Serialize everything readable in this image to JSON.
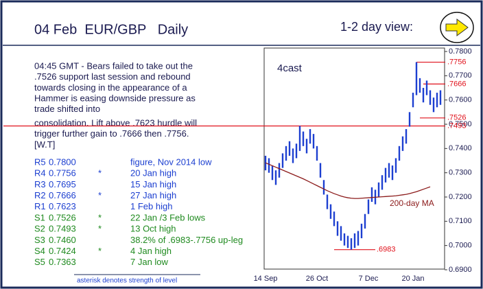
{
  "header": {
    "title": "04 Feb  EUR/GBP   Daily",
    "view_label": "1-2 day view:"
  },
  "commentary": [
    [
      "04:45 GMT - Bears failed to take out the",
      ".7526 support last session and rebound",
      "towards closing in the appearance of a",
      "Hammer is easing downside pressure as",
      "trade shifted into"
    ],
    [
      "consolidation. Lift above .7623 hurdle will",
      "trigger further gain to .7666 then .7756.",
      "[W.T]"
    ]
  ],
  "levels": [
    {
      "name": "R5",
      "price": "0.7800",
      "note": "figure, Nov 2014 low"
    },
    {
      "name": "R4",
      "price": "0.7756",
      "star": "*",
      "note": "20 Jan high"
    },
    {
      "name": "R3",
      "price": "0.7695",
      "note": "15 Jan high"
    },
    {
      "name": "R2",
      "price": "0.7666",
      "star": "*",
      "note": "27 Jan high"
    },
    {
      "name": "R1",
      "price": "0.7623",
      "note": "1 Feb high"
    },
    {
      "name": "S1",
      "price": "0.7526",
      "star": "*",
      "note": "22 Jan /3 Feb lows"
    },
    {
      "name": "S2",
      "price": "0.7493",
      "star": "*",
      "note": "13 Oct high"
    },
    {
      "name": "S3",
      "price": "0.7460",
      "note": "38.2% of .6983-.7756 up-leg"
    },
    {
      "name": "S4",
      "price": "0.7424",
      "star": "*",
      "note": "4 Jan high"
    },
    {
      "name": "S5",
      "price": "0.7363",
      "note": "7 Jan low"
    }
  ],
  "footnote": "asterisk denotes strength of level",
  "chart_data": {
    "type": "hilo",
    "brand": "4cast",
    "color": "#1c3fd0",
    "categories": [
      "14 Sep",
      null,
      null,
      null,
      null,
      null,
      null,
      null,
      null,
      null,
      null,
      null,
      null,
      null,
      null,
      "26 Oct",
      null,
      null,
      null,
      null,
      null,
      null,
      null,
      null,
      null,
      null,
      null,
      null,
      null,
      null,
      "7 Dec",
      null,
      null,
      null,
      null,
      null,
      null,
      null,
      null,
      null,
      null,
      null,
      null,
      "20 Jan",
      null,
      null,
      null,
      null,
      null,
      null,
      null,
      null
    ],
    "highs": [
      0.737,
      0.736,
      0.733,
      0.731,
      0.734,
      0.738,
      0.741,
      0.743,
      0.74,
      0.742,
      0.7493,
      0.747,
      0.744,
      0.748,
      0.746,
      0.741,
      0.734,
      0.727,
      0.721,
      0.717,
      0.714,
      0.71,
      0.708,
      0.705,
      0.704,
      0.703,
      0.705,
      0.706,
      0.709,
      0.713,
      0.719,
      0.724,
      0.723,
      0.726,
      0.729,
      0.732,
      0.734,
      0.733,
      0.736,
      0.741,
      0.745,
      0.748,
      0.755,
      0.763,
      0.7756,
      0.769,
      0.765,
      0.768,
      0.764,
      0.761,
      0.763,
      0.764
    ],
    "lows": [
      0.731,
      0.73,
      0.727,
      0.725,
      0.728,
      0.732,
      0.735,
      0.737,
      0.734,
      0.736,
      0.739,
      0.741,
      0.738,
      0.742,
      0.74,
      0.735,
      0.728,
      0.721,
      0.715,
      0.711,
      0.708,
      0.704,
      0.702,
      0.7,
      0.699,
      0.6983,
      0.699,
      0.7,
      0.703,
      0.707,
      0.713,
      0.718,
      0.717,
      0.72,
      0.723,
      0.726,
      0.728,
      0.727,
      0.73,
      0.735,
      0.739,
      0.742,
      0.749,
      0.757,
      0.762,
      0.763,
      0.759,
      0.762,
      0.758,
      0.755,
      0.757,
      0.758
    ],
    "series": [
      {
        "name": "200-day MA",
        "color": "#8b1a1a",
        "values": [
          0.7341,
          0.7335,
          0.7329,
          0.7323,
          0.7317,
          0.7311,
          0.7305,
          0.7299,
          0.7293,
          0.7287,
          0.7281,
          0.7275,
          0.7268,
          0.7261,
          0.7254,
          0.7247,
          0.724,
          0.7233,
          0.7226,
          0.722,
          0.7214,
          0.7209,
          0.7204,
          0.72,
          0.7197,
          0.7195,
          0.7194,
          0.7194,
          0.7195,
          0.7196,
          0.7197,
          0.7198,
          0.7199,
          0.72,
          0.7201,
          0.7202,
          0.7203,
          0.7204,
          0.7205,
          0.7207,
          0.7209,
          0.7211,
          0.7214,
          0.7218,
          0.7222,
          0.7227,
          0.7232,
          0.7237,
          0.7242,
          null,
          null,
          null
        ]
      }
    ],
    "level_color": "#e0101a",
    "level_lines": [
      {
        "value": 0.7756,
        "label": ".7756"
      },
      {
        "value": 0.7666,
        "label": ".7666"
      },
      {
        "value": 0.7526,
        "label": ".7526"
      },
      {
        "value": 0.7493,
        "label": ".7493"
      },
      {
        "value": 0.6983,
        "label": ".6983"
      }
    ],
    "ylim": [
      0.69,
      0.78
    ],
    "yticks": [
      {
        "value": 0.69,
        "label": "0.6900"
      },
      {
        "value": 0.7,
        "label": "0.7000"
      },
      {
        "value": 0.71,
        "label": "0.7100"
      },
      {
        "value": 0.72,
        "label": "0.7200"
      },
      {
        "value": 0.73,
        "label": "0.7300"
      },
      {
        "value": 0.74,
        "label": "0.7400"
      },
      {
        "value": 0.75,
        "label": "0.7500"
      },
      {
        "value": 0.76,
        "label": "0.7600"
      },
      {
        "value": 0.77,
        "label": "0.7700"
      },
      {
        "value": 0.78,
        "label": "0.7800"
      }
    ]
  }
}
